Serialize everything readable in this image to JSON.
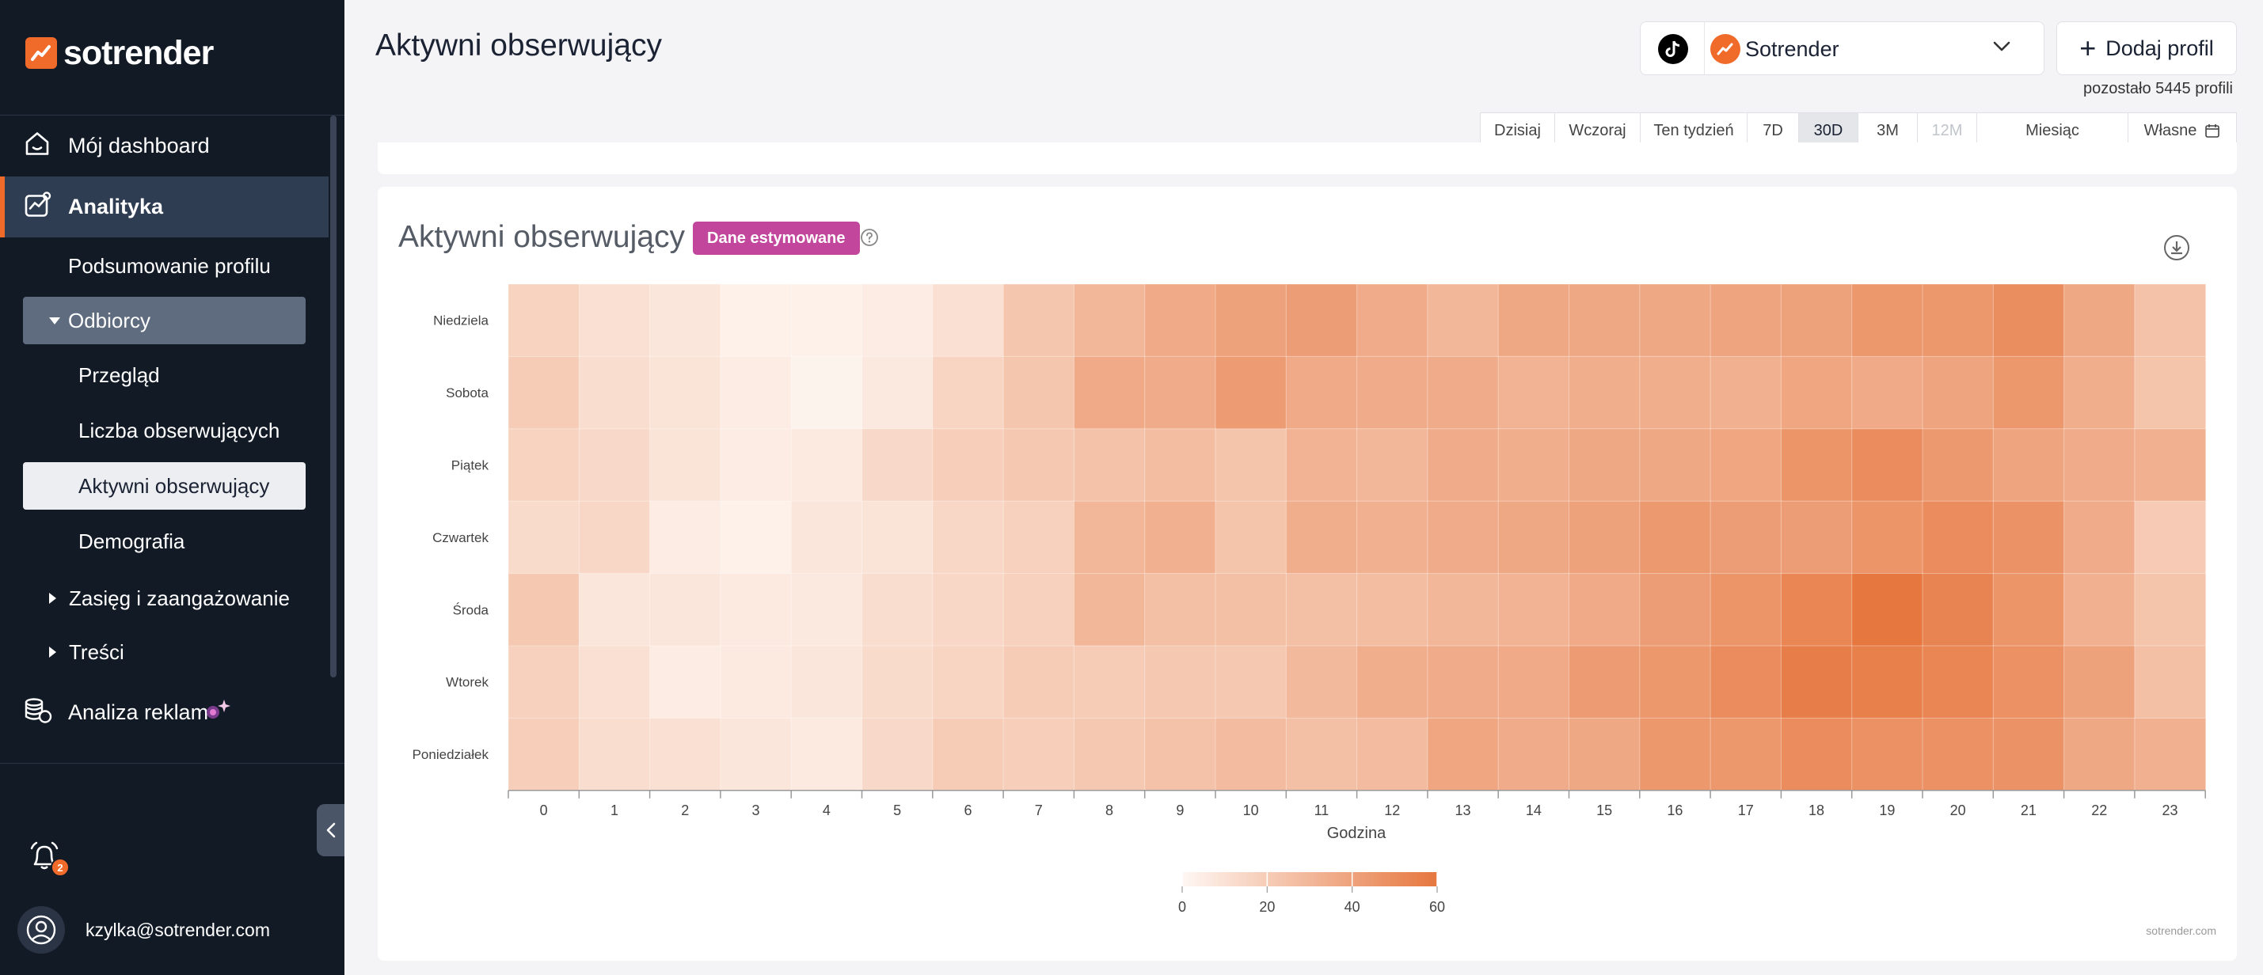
{
  "brand": {
    "name": "sotrender",
    "accent": "#f06b2a"
  },
  "sidebar": {
    "dashboard": "Mój dashboard",
    "analytics": "Analityka",
    "profile_summary": "Podsumowanie profilu",
    "audience": "Odbiorcy",
    "audience_items": [
      "Przegląd",
      "Liczba obserwujących",
      "Aktywni obserwujący",
      "Demografia"
    ],
    "reach": "Zasięg i zaangażowanie",
    "content": "Treści",
    "ads": "Analiza reklam",
    "notifications_count": "2",
    "user_email": "kzylka@sotrender.com"
  },
  "header": {
    "title": "Aktywni obserwujący",
    "profile_name": "Sotrender",
    "add_profile": "Dodaj profil",
    "remaining": "pozostało 5445 profili",
    "ranges": [
      "Dzisiaj",
      "Wczoraj",
      "Ten tydzień",
      "7D",
      "30D",
      "3M",
      "12M",
      "Miesiąc",
      "Własne"
    ],
    "active_range": "30D",
    "disabled_range": "12M"
  },
  "card": {
    "title": "Aktywni obserwujący",
    "badge": "Dane estymowane",
    "watermark": "sotrender.com"
  },
  "chart_data": {
    "type": "heatmap",
    "xlabel": "Godzina",
    "ylabel": "",
    "x": [
      0,
      1,
      2,
      3,
      4,
      5,
      6,
      7,
      8,
      9,
      10,
      11,
      12,
      13,
      14,
      15,
      16,
      17,
      18,
      19,
      20,
      21,
      22,
      23
    ],
    "y": [
      "Niedziela",
      "Sobota",
      "Piątek",
      "Czwartek",
      "Środa",
      "Wtorek",
      "Poniedziałek"
    ],
    "values": [
      [
        17,
        11,
        8,
        3,
        3,
        5,
        11,
        23,
        30,
        36,
        40,
        42,
        35,
        30,
        37,
        37,
        37,
        39,
        40,
        45,
        45,
        49,
        37,
        25
      ],
      [
        20,
        12,
        9,
        5,
        2,
        7,
        16,
        23,
        36,
        35,
        43,
        36,
        35,
        35,
        32,
        34,
        34,
        33,
        38,
        36,
        39,
        45,
        34,
        24
      ],
      [
        17,
        14,
        9,
        5,
        6,
        14,
        19,
        22,
        25,
        27,
        24,
        32,
        30,
        35,
        34,
        37,
        37,
        38,
        46,
        50,
        44,
        39,
        35,
        33
      ],
      [
        13,
        15,
        5,
        3,
        8,
        9,
        15,
        18,
        30,
        33,
        24,
        34,
        33,
        35,
        37,
        40,
        44,
        42,
        42,
        46,
        50,
        47,
        35,
        21
      ],
      [
        22,
        8,
        8,
        6,
        7,
        12,
        15,
        18,
        30,
        26,
        26,
        26,
        27,
        30,
        32,
        36,
        42,
        46,
        53,
        60,
        54,
        46,
        33,
        24
      ],
      [
        18,
        11,
        5,
        6,
        8,
        13,
        16,
        20,
        20,
        22,
        22,
        29,
        34,
        35,
        36,
        43,
        45,
        50,
        57,
        56,
        53,
        48,
        40,
        26
      ],
      [
        19,
        12,
        11,
        8,
        6,
        14,
        20,
        19,
        22,
        25,
        28,
        26,
        28,
        38,
        35,
        37,
        45,
        45,
        50,
        48,
        48,
        47,
        37,
        33
      ]
    ],
    "colorscale": {
      "min_color": "#fef7f3",
      "max_color": "#e6773f",
      "range": [
        0,
        60
      ]
    },
    "colorbar_ticks": [
      0,
      20,
      40,
      60
    ]
  }
}
